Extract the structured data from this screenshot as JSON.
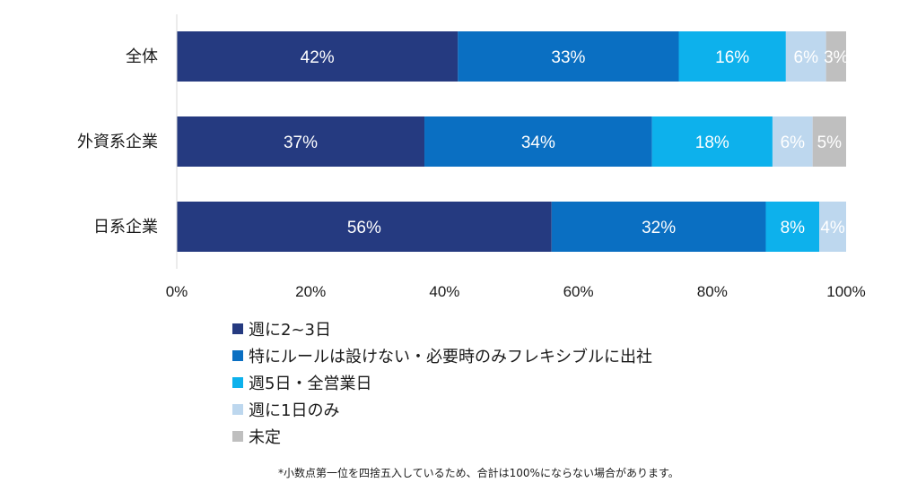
{
  "chart_data": {
    "type": "bar",
    "orientation": "horizontal",
    "stacked": true,
    "categories": [
      "全体",
      "外資系企業",
      "日系企業"
    ],
    "series": [
      {
        "name": "週に2~3日",
        "color": "#253A80",
        "values": [
          42,
          37,
          56
        ],
        "labels": [
          "42%",
          "37%",
          "56%"
        ]
      },
      {
        "name": "特にルールは設けない・必要時のみフレキシブルに出社",
        "color": "#0A6FC2",
        "values": [
          33,
          34,
          32
        ],
        "labels": [
          "33%",
          "34%",
          "32%"
        ]
      },
      {
        "name": "週5日・全営業日",
        "color": "#0DB1EC",
        "values": [
          16,
          18,
          8
        ],
        "labels": [
          "16%",
          "18%",
          "8%"
        ]
      },
      {
        "name": "週に1日のみ",
        "color": "#BDD7EE",
        "values": [
          6,
          6,
          4
        ],
        "labels": [
          "6%",
          "6%",
          "4%"
        ]
      },
      {
        "name": "未定",
        "color": "#BFBFBF",
        "values": [
          3,
          5,
          0
        ],
        "labels": [
          "3%",
          "5%",
          ""
        ]
      }
    ],
    "xlim": [
      0,
      100
    ],
    "xticks": [
      "0%",
      "20%",
      "40%",
      "60%",
      "80%",
      "100%"
    ],
    "grid": false,
    "legend_position": "bottom"
  },
  "footnote": "*小数点第一位を四捨五入しているため、合計は100%にならない場合があります。"
}
